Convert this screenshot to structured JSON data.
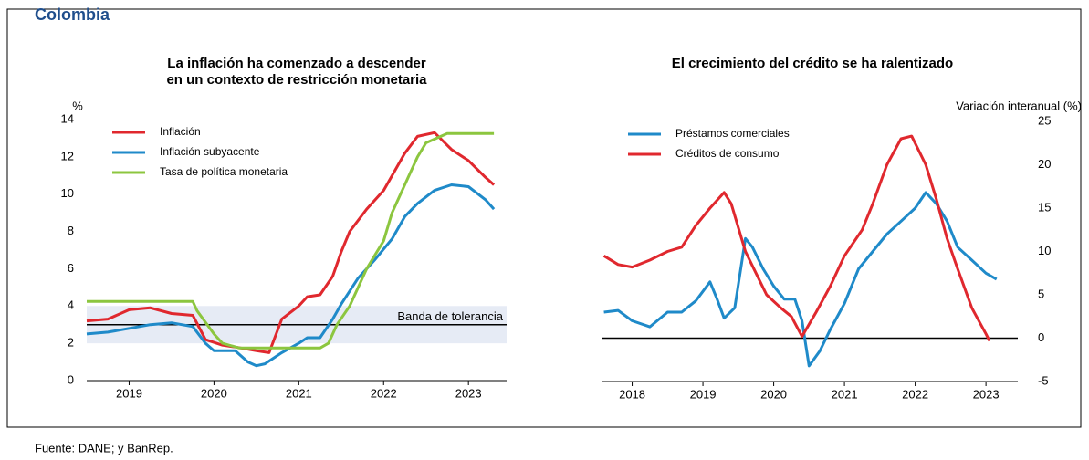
{
  "header": {
    "title": "Colombia"
  },
  "source": "Fuente: DANE; y BanRep.",
  "chart_data": [
    {
      "type": "line",
      "title": [
        "La inflación ha comenzado a descender",
        "en un contexto de restricción monetaria"
      ],
      "y_label": "%",
      "xlim": [
        2019.0,
        2023.95
      ],
      "xticks": [
        {
          "value": 2019.5,
          "label": "2019"
        },
        {
          "value": 2020.5,
          "label": "2020"
        },
        {
          "value": 2021.5,
          "label": "2021"
        },
        {
          "value": 2022.5,
          "label": "2022"
        },
        {
          "value": 2023.5,
          "label": "2023"
        }
      ],
      "ylim": [
        0,
        14
      ],
      "yticks": [
        0,
        2,
        4,
        6,
        8,
        10,
        12,
        14
      ],
      "y_axis_side": "left",
      "legend": "upper left",
      "annotation": {
        "text": "Banda de tolerancia",
        "band": [
          2,
          4
        ],
        "line": 3
      },
      "series": [
        {
          "name": "Inflación",
          "color": "#e0282e",
          "x": [
            2019.0,
            2019.25,
            2019.5,
            2019.75,
            2020.0,
            2020.25,
            2020.4,
            2020.6,
            2020.75,
            2021.0,
            2021.15,
            2021.3,
            2021.5,
            2021.6,
            2021.75,
            2021.9,
            2022.0,
            2022.1,
            2022.3,
            2022.5,
            2022.75,
            2022.9,
            2023.1,
            2023.3,
            2023.5,
            2023.7,
            2023.8
          ],
          "values": [
            3.2,
            3.3,
            3.8,
            3.9,
            3.6,
            3.5,
            2.2,
            1.9,
            1.8,
            1.6,
            1.5,
            3.3,
            4.0,
            4.5,
            4.6,
            5.6,
            6.9,
            8.0,
            9.2,
            10.2,
            12.2,
            13.1,
            13.3,
            12.4,
            11.8,
            10.9,
            10.5
          ]
        },
        {
          "name": "Inflación subyacente",
          "color": "#1f8ac9",
          "x": [
            2019.0,
            2019.25,
            2019.5,
            2019.75,
            2020.0,
            2020.25,
            2020.4,
            2020.5,
            2020.75,
            2020.9,
            2021.0,
            2021.1,
            2021.3,
            2021.5,
            2021.6,
            2021.75,
            2021.9,
            2022.0,
            2022.2,
            2022.4,
            2022.6,
            2022.75,
            2022.9,
            2023.1,
            2023.3,
            2023.5,
            2023.7,
            2023.8
          ],
          "values": [
            2.5,
            2.6,
            2.8,
            3.0,
            3.1,
            2.9,
            2.0,
            1.6,
            1.6,
            1.0,
            0.8,
            0.9,
            1.5,
            2.0,
            2.3,
            2.3,
            3.3,
            4.1,
            5.5,
            6.5,
            7.6,
            8.8,
            9.5,
            10.2,
            10.5,
            10.4,
            9.7,
            9.2
          ]
        },
        {
          "name": "Tasa de política monetaria",
          "color": "#8cc63f",
          "x": [
            2019.0,
            2020.25,
            2020.3,
            2020.5,
            2020.6,
            2020.8,
            2021.75,
            2021.85,
            2021.95,
            2022.1,
            2022.3,
            2022.5,
            2022.6,
            2022.8,
            2022.9,
            2023.0,
            2023.25,
            2023.8
          ],
          "values": [
            4.25,
            4.25,
            3.75,
            2.5,
            2.0,
            1.75,
            1.75,
            2.0,
            3.0,
            4.0,
            6.0,
            7.5,
            9.0,
            11.0,
            12.0,
            12.75,
            13.25,
            13.25
          ]
        }
      ]
    },
    {
      "type": "line",
      "title": [
        "El crecimiento del crédito se ha ralentizado"
      ],
      "y_label": "Variación interanual (%)",
      "xlim": [
        2018.08,
        2023.95
      ],
      "xticks": [
        {
          "value": 2018.5,
          "label": "2018"
        },
        {
          "value": 2019.5,
          "label": "2019"
        },
        {
          "value": 2020.5,
          "label": "2020"
        },
        {
          "value": 2021.5,
          "label": "2021"
        },
        {
          "value": 2022.5,
          "label": "2022"
        },
        {
          "value": 2023.5,
          "label": "2023"
        }
      ],
      "ylim": [
        -5,
        25
      ],
      "yticks": [
        -5,
        0,
        5,
        10,
        15,
        20,
        25
      ],
      "y_axis_side": "right",
      "zero_line": true,
      "legend": "upper left",
      "series": [
        {
          "name": "Préstamos comerciales",
          "color": "#1f8ac9",
          "x": [
            2018.1,
            2018.3,
            2018.5,
            2018.75,
            2019.0,
            2019.2,
            2019.4,
            2019.6,
            2019.7,
            2019.8,
            2019.95,
            2020.1,
            2020.2,
            2020.35,
            2020.5,
            2020.65,
            2020.8,
            2020.9,
            2021.0,
            2021.15,
            2021.3,
            2021.5,
            2021.7,
            2021.9,
            2022.1,
            2022.3,
            2022.5,
            2022.65,
            2022.8,
            2022.95,
            2023.1,
            2023.3,
            2023.5,
            2023.65
          ],
          "values": [
            3.0,
            3.2,
            2.0,
            1.3,
            3.0,
            3.0,
            4.3,
            6.5,
            4.5,
            2.3,
            3.5,
            11.5,
            10.5,
            8.0,
            6.0,
            4.5,
            4.5,
            2.0,
            -3.2,
            -1.5,
            1.0,
            4.0,
            8.0,
            10.0,
            12.0,
            13.5,
            15.0,
            16.8,
            15.5,
            13.5,
            10.5,
            9.0,
            7.5,
            6.8
          ]
        },
        {
          "name": "Créditos de consumo",
          "color": "#e0282e",
          "x": [
            2018.1,
            2018.3,
            2018.5,
            2018.75,
            2019.0,
            2019.2,
            2019.4,
            2019.6,
            2019.8,
            2019.9,
            2020.1,
            2020.25,
            2020.4,
            2020.6,
            2020.75,
            2020.9,
            2021.1,
            2021.3,
            2021.5,
            2021.75,
            2021.9,
            2022.1,
            2022.3,
            2022.45,
            2022.65,
            2022.8,
            2022.95,
            2023.1,
            2023.3,
            2023.5,
            2023.55
          ],
          "values": [
            9.5,
            8.5,
            8.2,
            9.0,
            10.0,
            10.5,
            13.0,
            15.0,
            16.8,
            15.5,
            10.0,
            7.5,
            5.0,
            3.5,
            2.5,
            0.2,
            3.0,
            6.0,
            9.5,
            12.5,
            15.5,
            20.0,
            23.0,
            23.3,
            20.0,
            16.0,
            11.5,
            8.0,
            3.5,
            0.5,
            -0.3
          ]
        }
      ]
    }
  ]
}
